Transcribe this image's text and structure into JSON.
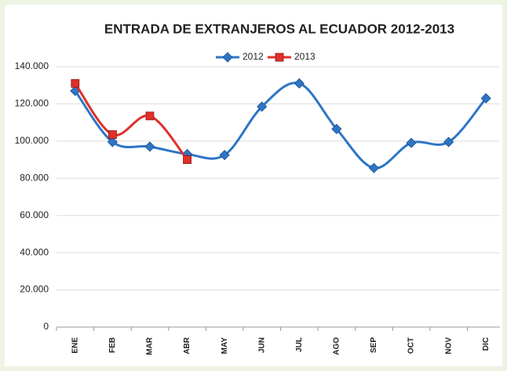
{
  "chart_data": {
    "type": "line",
    "title": "ENTRADA DE EXTRANJEROS AL ECUADOR 2012-2013",
    "categories": [
      "ENE",
      "FEB",
      "MAR",
      "ABR",
      "MAY",
      "JUN",
      "JUL",
      "AGO",
      "SEP",
      "OCT",
      "NOV",
      "DIC"
    ],
    "series": [
      {
        "name": "2012",
        "color": "#2e75c6",
        "marker": "diamond",
        "smooth": true,
        "values": [
          127000,
          99500,
          97000,
          93000,
          92500,
          118500,
          131000,
          106500,
          85500,
          99000,
          99500,
          123000
        ]
      },
      {
        "name": "2013",
        "color": "#e0302a",
        "marker": "square",
        "smooth": true,
        "values": [
          131000,
          103500,
          113500,
          90000,
          null,
          null,
          null,
          null,
          null,
          null,
          null,
          null
        ]
      }
    ],
    "ylim": [
      0,
      140000
    ],
    "yticks": [
      0,
      {
        "value": 20000,
        "label": "20.000"
      },
      {
        "value": 40000,
        "label": "40.000"
      },
      {
        "value": 60000,
        "label": "60.000"
      },
      {
        "value": 80000,
        "label": "80.000"
      },
      {
        "value": 100000,
        "label": "100.000"
      },
      {
        "value": 120000,
        "label": "120.000"
      },
      {
        "value": 140000,
        "label": "140.000"
      }
    ],
    "grid": true,
    "legend": "top"
  }
}
